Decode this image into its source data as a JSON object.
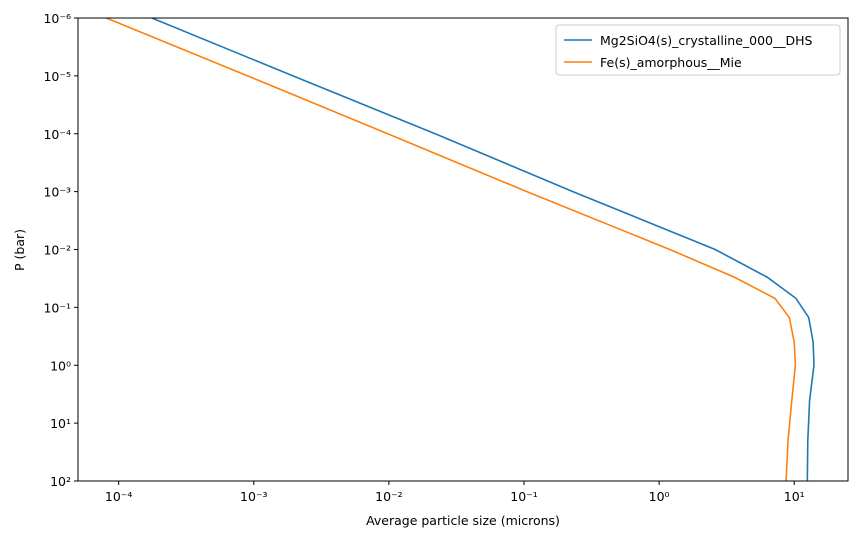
{
  "chart_data": {
    "type": "line",
    "x_label": "Average particle size (microns)",
    "y_label": "P (bar)",
    "x_scale": "log",
    "y_scale": "log",
    "xlim": [
      5e-05,
      25
    ],
    "ylim": [
      100,
      1e-06
    ],
    "xticks": [
      {
        "value": 0.0001,
        "label": "10⁻⁴"
      },
      {
        "value": 0.001,
        "label": "10⁻³"
      },
      {
        "value": 0.01,
        "label": "10⁻²"
      },
      {
        "value": 0.1,
        "label": "10⁻¹"
      },
      {
        "value": 1,
        "label": "10⁰"
      },
      {
        "value": 10,
        "label": "10¹"
      }
    ],
    "yticks": [
      {
        "value": 1e-06,
        "label": "10⁻⁶"
      },
      {
        "value": 1e-05,
        "label": "10⁻⁵"
      },
      {
        "value": 0.0001,
        "label": "10⁻⁴"
      },
      {
        "value": 0.001,
        "label": "10⁻³"
      },
      {
        "value": 0.01,
        "label": "10⁻²"
      },
      {
        "value": 0.1,
        "label": "10⁻¹"
      },
      {
        "value": 1,
        "label": "10⁰"
      },
      {
        "value": 10,
        "label": "10¹"
      },
      {
        "value": 100,
        "label": "10²"
      }
    ],
    "legend": "upper right",
    "y": [
      1e-06,
      1e-05,
      0.0001,
      0.001,
      0.01,
      0.03,
      0.07,
      0.15,
      0.4,
      1,
      4,
      20,
      100
    ],
    "series": [
      {
        "name": "Mg2SiO4(s)_crystalline_000__DHS",
        "color": "#1f77b4",
        "x": [
          0.000176,
          0.00195,
          0.022,
          0.23,
          2.6,
          6.3,
          10.3,
          12.8,
          13.8,
          14,
          13,
          12.6,
          12.5
        ]
      },
      {
        "name": "Fe(s)_amorphous__Mie",
        "color": "#ff7f0e",
        "x": [
          8.1e-05,
          0.0009,
          0.0098,
          0.105,
          1.2,
          3.6,
          7.2,
          9.2,
          10,
          10.2,
          9.6,
          9.0,
          8.7
        ]
      }
    ]
  }
}
